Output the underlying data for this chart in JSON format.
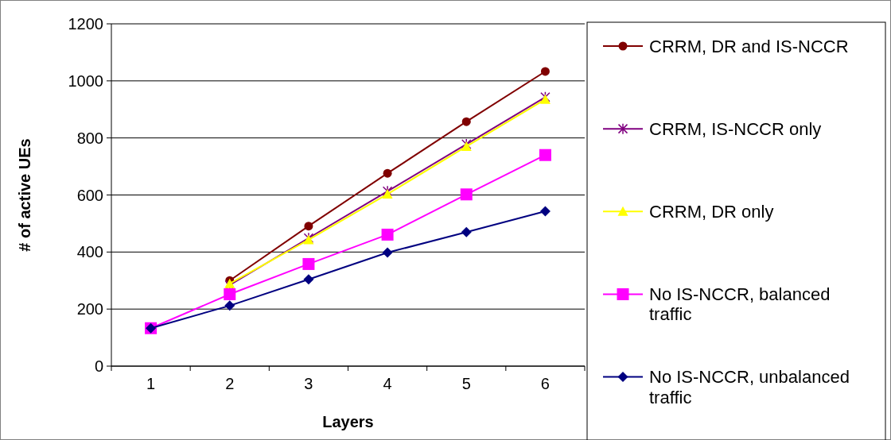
{
  "chart_data": {
    "type": "line",
    "xlabel": "Layers",
    "ylabel": "# of active UEs",
    "categories": [
      "1",
      "2",
      "3",
      "4",
      "5",
      "6"
    ],
    "series": [
      {
        "name": "CRRM, DR and IS-NCCR",
        "color": "#800000",
        "marker": "circle",
        "values": [
          null,
          300,
          491,
          676,
          857,
          1033
        ]
      },
      {
        "name": "CRRM, IS-NCCR only",
        "color": "#800080",
        "marker": "cross",
        "values": [
          null,
          284,
          449,
          613,
          778,
          943
        ]
      },
      {
        "name": "CRRM, DR only",
        "color": "#ffff00",
        "marker": "triangle",
        "values": [
          null,
          289,
          443,
          603,
          770,
          935
        ]
      },
      {
        "name": "No IS-NCCR, balanced traffic",
        "color": "#ff00ff",
        "marker": "square",
        "values": [
          133,
          252,
          358,
          461,
          602,
          740
        ]
      },
      {
        "name": "No IS-NCCR, unbalanced traffic",
        "color": "#000080",
        "marker": "diamond",
        "values": [
          133,
          212,
          304,
          398,
          470,
          543
        ]
      }
    ],
    "ylim": [
      0,
      1200
    ],
    "yticks": [
      0,
      200,
      400,
      600,
      800,
      1000,
      1200
    ],
    "grid": "y",
    "legend": "right"
  }
}
